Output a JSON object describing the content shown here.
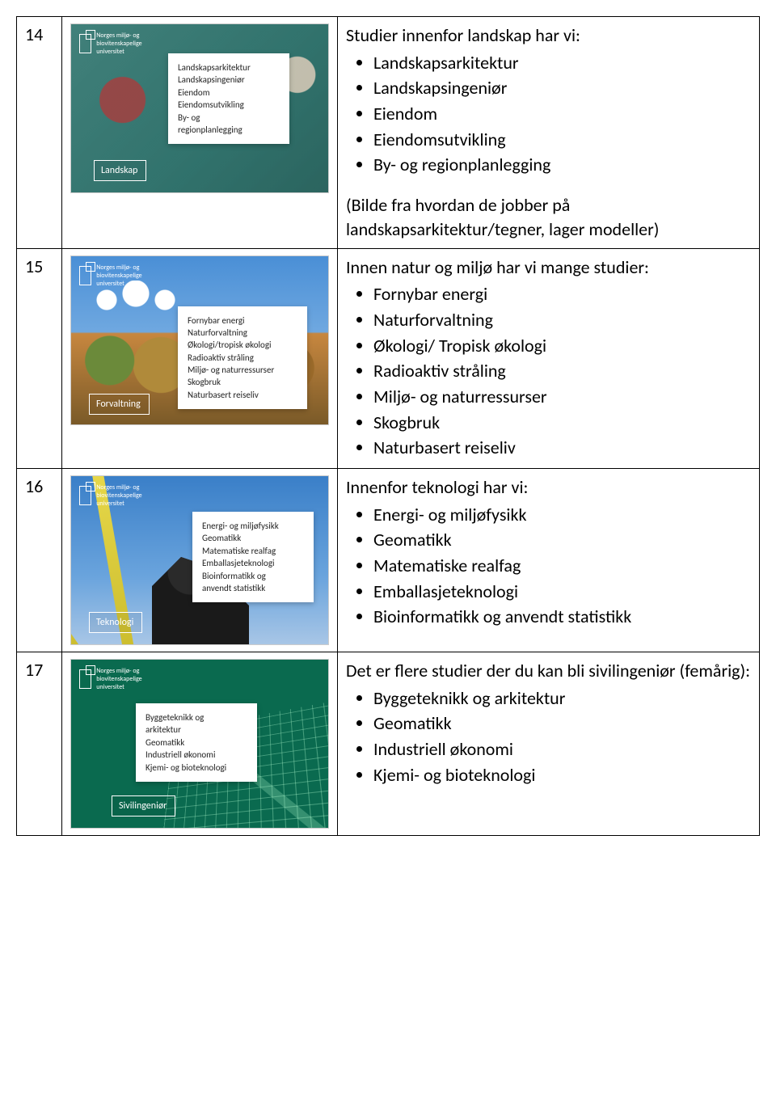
{
  "rows": [
    {
      "num": "14",
      "thumb": {
        "logo_text": "Norges miljø- og biovitenskapelige universitet",
        "card_lines": [
          "Landskapsarkitektur",
          "Landskapsingeniør",
          "Eiendom",
          "Eiendomsutvikling",
          "By- og",
          "regionplanlegging"
        ],
        "tag": "Landskap"
      },
      "intro": "Studier innenfor landskap har vi:",
      "bullets": [
        "Landskapsarkitektur",
        "Landskapsingeniør",
        "Eiendom",
        "Eiendomsutvikling",
        "By- og regionplanlegging"
      ],
      "note": "(Bilde fra hvordan de jobber på landskapsarkitektur/tegner, lager modeller)"
    },
    {
      "num": "15",
      "thumb": {
        "logo_text": "Norges miljø- og biovitenskapelige universitet",
        "card_lines": [
          "Fornybar energi",
          "Naturforvaltning",
          "Økologi/tropisk økologi",
          "Radioaktiv stråling",
          "Miljø- og naturressurser",
          "Skogbruk",
          "Naturbasert reiseliv"
        ],
        "tag": "Forvaltning"
      },
      "intro": "Innen natur og miljø har vi mange studier:",
      "bullets": [
        "Fornybar energi",
        "Naturforvaltning",
        "Økologi/ Tropisk økologi",
        "Radioaktiv stråling",
        "Miljø- og naturressurser",
        "Skogbruk",
        "Naturbasert reiseliv"
      ],
      "note": ""
    },
    {
      "num": "16",
      "thumb": {
        "logo_text": "Norges miljø- og biovitenskapelige universitet",
        "card_lines": [
          "Energi- og miljøfysikk",
          "Geomatikk",
          "Matematiske realfag",
          "Emballasjeteknologi",
          "Bioinformatikk og",
          "anvendt statistikk"
        ],
        "tag": "Teknologi"
      },
      "intro": "Innenfor teknologi har vi:",
      "bullets": [
        "Energi- og miljøfysikk",
        "Geomatikk",
        "Matematiske realfag",
        "Emballasjeteknologi",
        "Bioinformatikk og anvendt statistikk"
      ],
      "note": ""
    },
    {
      "num": "17",
      "thumb": {
        "logo_text": "Norges miljø- og biovitenskapelige universitet",
        "card_lines": [
          "Byggeteknikk og",
          "arkitektur",
          "Geomatikk",
          "Industriell økonomi",
          "Kjemi- og bioteknologi"
        ],
        "tag": "Sivilingeniør"
      },
      "intro": "Det er flere studier der du kan bli sivilingeniør (femårig):",
      "bullets": [
        "Byggeteknikk og arkitektur",
        "Geomatikk",
        "Industriell økonomi",
        "Kjemi- og bioteknologi"
      ],
      "note": ""
    }
  ]
}
